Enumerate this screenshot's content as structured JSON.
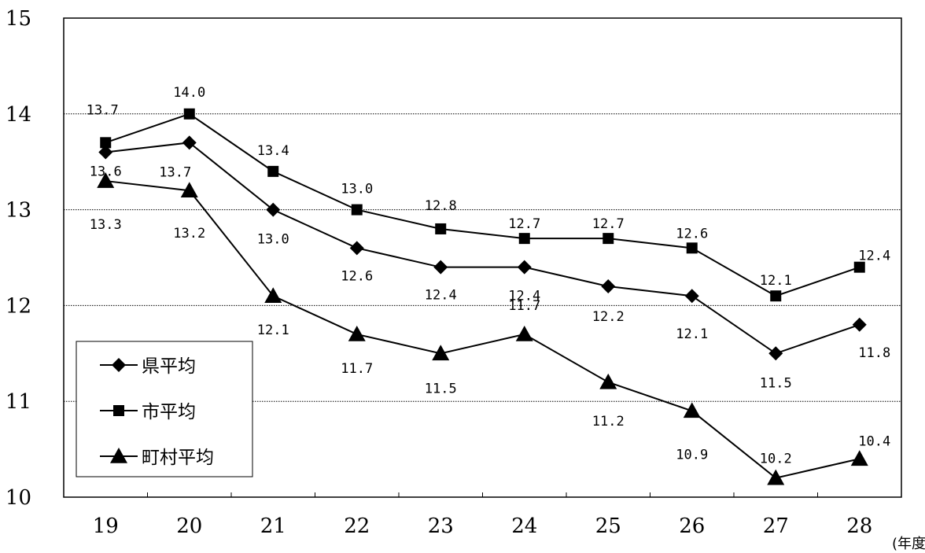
{
  "chart_data": {
    "type": "line",
    "categories": [
      "19",
      "20",
      "21",
      "22",
      "23",
      "24",
      "25",
      "26",
      "27",
      "28"
    ],
    "x_unit": "(年度)",
    "ylim": [
      10,
      15
    ],
    "yticks": [
      "10",
      "11",
      "12",
      "13",
      "14",
      "15"
    ],
    "grid": true,
    "legend_position": "bottom-left",
    "series": [
      {
        "name": "県平均",
        "marker": "diamond",
        "values": [
          13.6,
          13.7,
          13.0,
          12.6,
          12.4,
          12.4,
          12.2,
          12.1,
          11.5,
          11.8
        ],
        "labels": [
          "13.6",
          "13.7",
          "13.0",
          "12.6",
          "12.4",
          "12.4",
          "12.2",
          "12.1",
          "11.5",
          "11.8"
        ]
      },
      {
        "name": "市平均",
        "marker": "square",
        "values": [
          13.7,
          14.0,
          13.4,
          13.0,
          12.8,
          12.7,
          12.7,
          12.6,
          12.1,
          12.4
        ],
        "labels": [
          "13.7",
          "14.0",
          "13.4",
          "13.0",
          "12.8",
          "12.7",
          "12.7",
          "12.6",
          "12.1",
          "12.4"
        ]
      },
      {
        "name": "町村平均",
        "marker": "triangle",
        "values": [
          13.3,
          13.2,
          12.1,
          11.7,
          11.5,
          11.7,
          11.2,
          10.9,
          10.2,
          10.4
        ],
        "labels": [
          "13.3",
          "13.2",
          "12.1",
          "11.7",
          "11.5",
          "11.7",
          "11.2",
          "10.9",
          "10.2",
          "10.4"
        ]
      }
    ]
  }
}
